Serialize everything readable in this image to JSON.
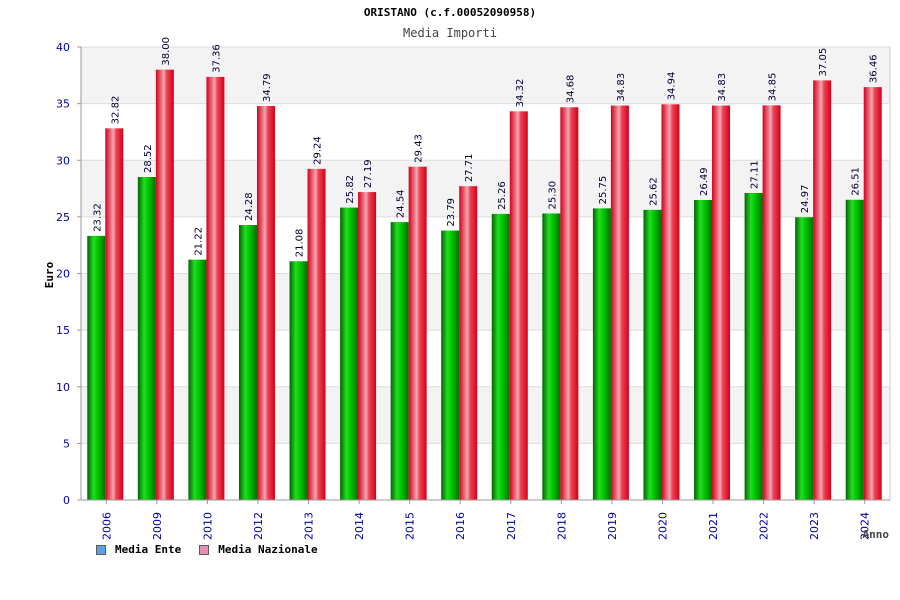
{
  "chart_data": {
    "type": "bar",
    "title": "ORISTANO (c.f.00052090958)",
    "subtitle": "Media Importi",
    "xlabel": "Anno",
    "ylabel": "Euro",
    "ylim": [
      0,
      40
    ],
    "yticks": [
      "0",
      "5",
      "10",
      "15",
      "20",
      "25",
      "30",
      "35",
      "40"
    ],
    "categories": [
      "2006",
      "2009",
      "2010",
      "2012",
      "2013",
      "2014",
      "2015",
      "2016",
      "2017",
      "2018",
      "2019",
      "2020",
      "2021",
      "2022",
      "2023",
      "2024"
    ],
    "series": [
      {
        "name": "Media Ente",
        "color": "#00bb00",
        "swatch_color": "#5aa0e6",
        "values": [
          23.32,
          28.52,
          21.22,
          24.28,
          21.08,
          25.82,
          24.54,
          23.79,
          25.26,
          25.3,
          25.75,
          25.62,
          26.49,
          27.11,
          24.97,
          26.51
        ],
        "labels": [
          "23.32",
          "28.52",
          "21.22",
          "24.28",
          "21.08",
          "25.82",
          "24.54",
          "23.79",
          "25.26",
          "25.30",
          "25.75",
          "25.62",
          "26.49",
          "27.11",
          "24.97",
          "26.51"
        ]
      },
      {
        "name": "Media Nazionale",
        "color": "#ee1122",
        "swatch_color": "#e58fb4",
        "values": [
          32.82,
          38.0,
          37.36,
          34.79,
          29.24,
          27.19,
          29.43,
          27.71,
          34.32,
          34.68,
          34.83,
          34.94,
          34.83,
          34.85,
          37.05,
          36.46
        ],
        "labels": [
          "32.82",
          "38.00",
          "37.36",
          "34.79",
          "29.24",
          "27.19",
          "29.43",
          "27.71",
          "34.32",
          "34.68",
          "34.83",
          "34.94",
          "34.83",
          "34.85",
          "37.05",
          "36.46"
        ]
      }
    ],
    "grid": true,
    "legend_position": "bottom-left"
  }
}
